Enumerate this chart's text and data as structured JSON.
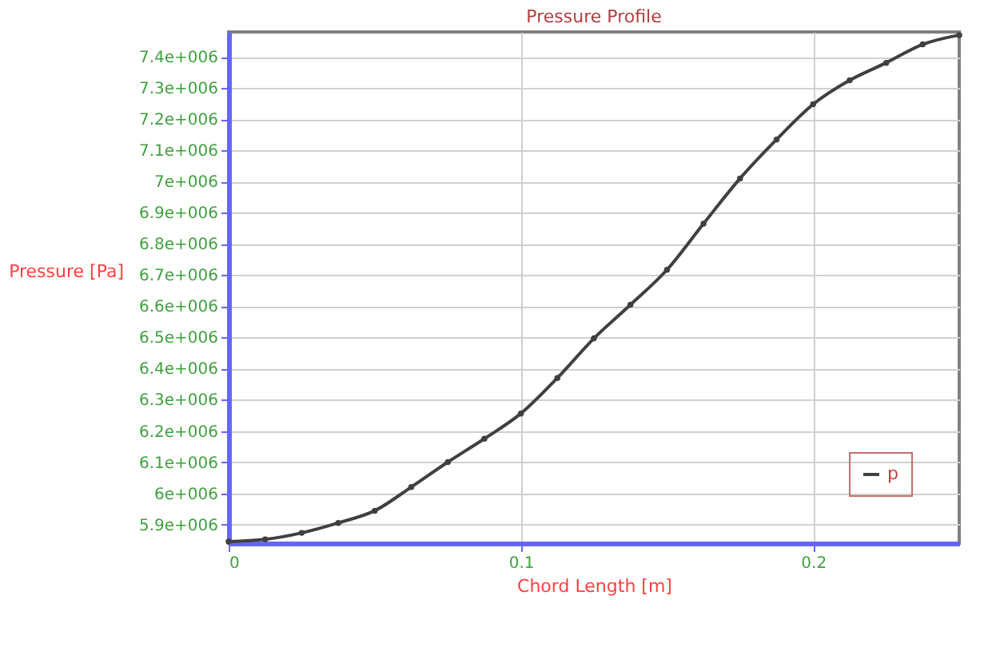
{
  "chart_data": {
    "type": "line",
    "title": "Pressure Profile",
    "xlabel": "Chord Length [m]",
    "ylabel": "Pressure [Pa]",
    "x": [
      0,
      0.0125,
      0.025,
      0.0375,
      0.05,
      0.0625,
      0.075,
      0.0875,
      0.1,
      0.1125,
      0.125,
      0.1375,
      0.15,
      0.1625,
      0.175,
      0.1875,
      0.2,
      0.2125,
      0.225,
      0.2375,
      0.25
    ],
    "series": [
      {
        "name": "p",
        "color": "#404040",
        "values": [
          5845000,
          5852000,
          5873000,
          5905000,
          5944000,
          6020000,
          6100000,
          6175000,
          6256000,
          6370000,
          6497000,
          6605000,
          6717000,
          6865000,
          7010000,
          7135000,
          7248000,
          7325000,
          7381000,
          7440000,
          7470000
        ]
      }
    ],
    "xlim": [
      0,
      0.25
    ],
    "ylim": [
      5840000,
      7480000
    ],
    "xticks": [
      0,
      0.1,
      0.2
    ],
    "yticks": [
      {
        "value": 5900000,
        "label": "5.9e+006"
      },
      {
        "value": 6000000,
        "label": "6e+006"
      },
      {
        "value": 6100000,
        "label": "6.1e+006"
      },
      {
        "value": 6200000,
        "label": "6.2e+006"
      },
      {
        "value": 6300000,
        "label": "6.3e+006"
      },
      {
        "value": 6400000,
        "label": "6.4e+006"
      },
      {
        "value": 6500000,
        "label": "6.5e+006"
      },
      {
        "value": 6600000,
        "label": "6.6e+006"
      },
      {
        "value": 6700000,
        "label": "6.7e+006"
      },
      {
        "value": 6800000,
        "label": "6.8e+006"
      },
      {
        "value": 6900000,
        "label": "6.9e+006"
      },
      {
        "value": 7000000,
        "label": "7e+006"
      },
      {
        "value": 7100000,
        "label": "7.1e+006"
      },
      {
        "value": 7200000,
        "label": "7.2e+006"
      },
      {
        "value": 7300000,
        "label": "7.3e+006"
      },
      {
        "value": 7400000,
        "label": "7.4e+006"
      }
    ],
    "grid": true,
    "legend": "bottom right",
    "marker": "circle",
    "line_style": "solid"
  }
}
